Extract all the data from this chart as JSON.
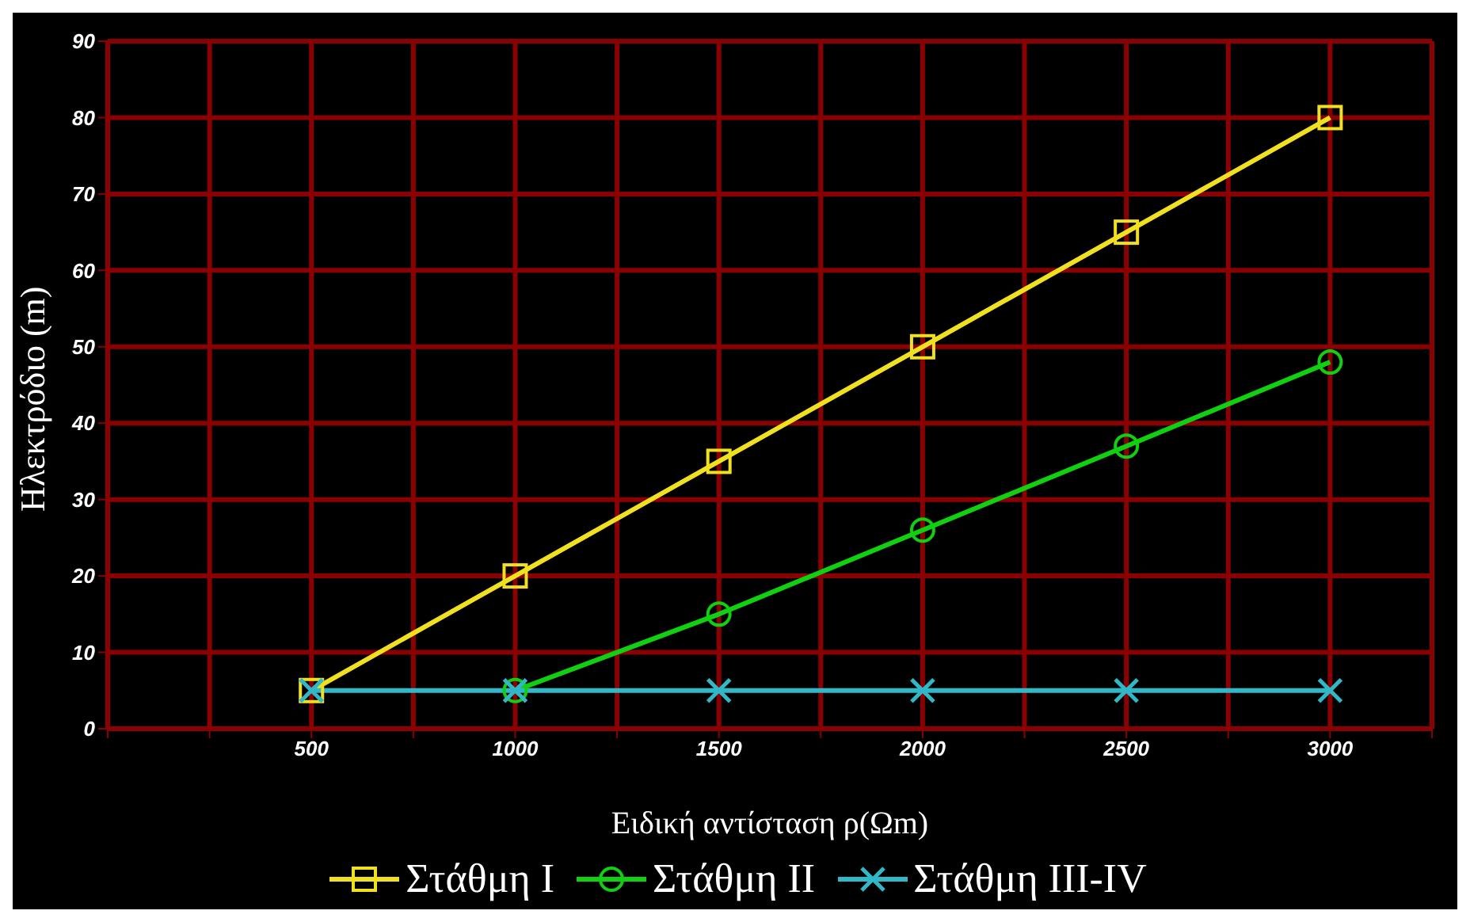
{
  "chart_data": {
    "type": "line",
    "xlabel": "Ειδική αντίσταση ρ(Ωm)",
    "ylabel": "Ηλεκτρόδιο (m)",
    "x": [
      500,
      1000,
      1500,
      2000,
      2500,
      3000
    ],
    "series": [
      {
        "name": "Στάθμη I",
        "color": "#f0e020",
        "marker": "square",
        "values": [
          5,
          20,
          35,
          50,
          65,
          80
        ]
      },
      {
        "name": "Στάθμη II",
        "color": "#10d010",
        "marker": "circle",
        "values": [
          null,
          5,
          15,
          26,
          37,
          48
        ]
      },
      {
        "name": "Στάθμη III-IV",
        "color": "#30b8c8",
        "marker": "cross",
        "values": [
          5,
          5,
          5,
          5,
          5,
          5
        ]
      }
    ],
    "xlim": [
      0,
      3250
    ],
    "xticks": [
      {
        "value": 0,
        "label": null
      },
      {
        "value": 250,
        "label": null
      },
      500,
      {
        "value": 750,
        "label": null
      },
      1000,
      {
        "value": 1250,
        "label": null
      },
      1500,
      {
        "value": 1750,
        "label": null
      },
      2000,
      {
        "value": 2250,
        "label": null
      },
      2500,
      {
        "value": 2750,
        "label": null
      },
      3000,
      {
        "value": 3250,
        "label": null
      }
    ],
    "ylim": [
      0,
      90
    ],
    "yticks": [
      0,
      10,
      20,
      30,
      40,
      50,
      60,
      70,
      80,
      90
    ],
    "grid": true,
    "legend": "bottom",
    "line_style": "solid"
  }
}
